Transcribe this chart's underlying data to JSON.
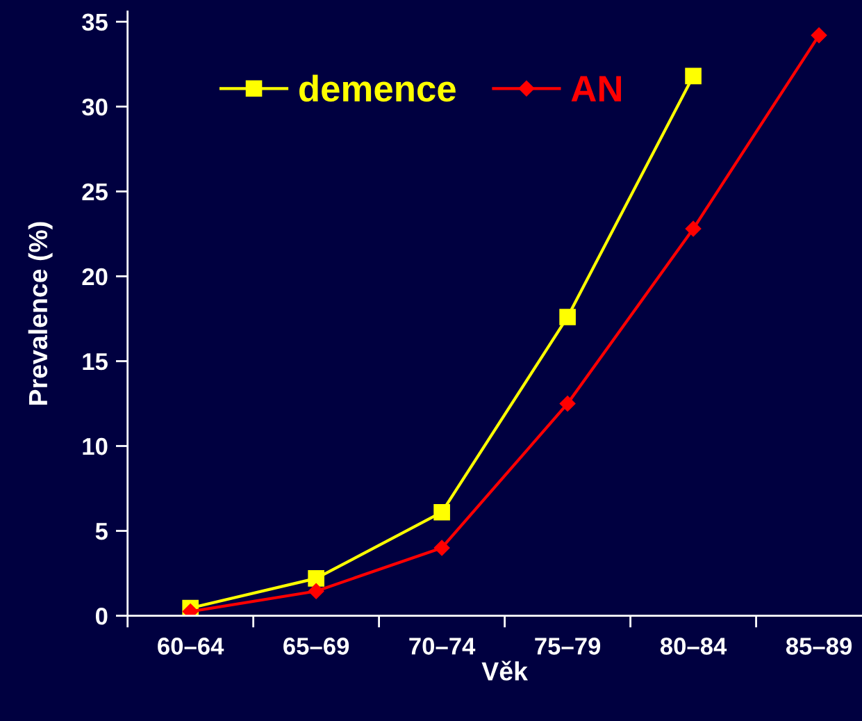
{
  "chart_data": {
    "type": "line",
    "xlabel": "Věk",
    "ylabel": "Prevalence (%)",
    "categories": [
      "60–64",
      "65–69",
      "70–74",
      "75–79",
      "80–84",
      "85–89"
    ],
    "series": [
      {
        "name": "demence",
        "color": "#ffff00",
        "marker": "square",
        "values": [
          0.45,
          2.2,
          6.1,
          17.6,
          31.8,
          null
        ]
      },
      {
        "name": "AN",
        "color": "#ff0000",
        "marker": "diamond",
        "values": [
          0.25,
          1.45,
          4.0,
          12.5,
          22.8,
          34.2
        ]
      }
    ],
    "ylim": [
      0,
      35.6
    ],
    "yticks": [
      0,
      5,
      10,
      15,
      20,
      25,
      30,
      35
    ],
    "grid": false,
    "legend": "top left"
  }
}
